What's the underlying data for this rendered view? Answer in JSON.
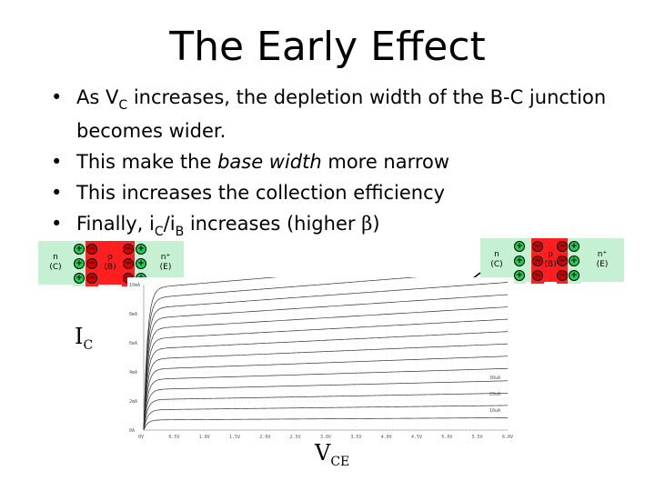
{
  "title": "The Early Effect",
  "bullets": [
    {
      "a": "As V",
      "sub": "C",
      "b": " increases, the depletion width of the B-C junction becomes wider."
    },
    {
      "a": "This make the ",
      "ital": "base width",
      "b": " more narrow"
    },
    {
      "a": "This increases the collection efficiency"
    },
    {
      "a": "Finally, i",
      "sub1": "C",
      "mid": "/i",
      "sub2": "B",
      "b": " increases (higher ",
      "greek": "β",
      "c": ")"
    }
  ],
  "left_device": {
    "n_label": "n",
    "n_sub": "(C)",
    "p_label": "p",
    "p_sub": "(B)",
    "np_label": "n⁺",
    "np_sub": "(E)"
  },
  "right_device": {
    "n_label": "n",
    "n_sub": "(C)",
    "p_label": "p",
    "p_sub": "(B)",
    "np_label": "n⁺",
    "np_sub": "(E)"
  },
  "axes": {
    "y_label": "I",
    "y_sub": "C",
    "x_label": "V",
    "x_sub": "CE"
  },
  "plot_ticks": {
    "y": [
      "0A",
      "2mA",
      "4mA",
      "6mA",
      "8mA",
      "10mA"
    ],
    "x": [
      "0V",
      "0.5V",
      "1.0V",
      "1.5V",
      "2.0V",
      "2.5V",
      "3.0V",
      "3.5V",
      "4.0V",
      "4.5V",
      "5.0V",
      "5.5V",
      "6.0V"
    ],
    "legend": [
      "30uA",
      "20uA",
      "10uA"
    ]
  },
  "colors": {
    "n_region": "#c6f0d2",
    "p_region": "#ff1f1f",
    "pos_ion": "#22cc55",
    "neg_ion": "#cc0000"
  }
}
